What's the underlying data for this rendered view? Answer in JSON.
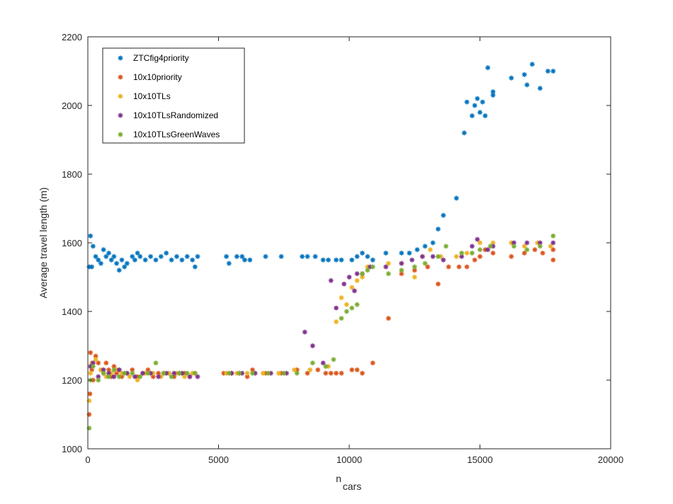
{
  "chart_data": {
    "type": "scatter",
    "xlabel_main": "n",
    "xlabel_sub": "cars",
    "ylabel": "Average travel length (m)",
    "xlim": [
      0,
      20000
    ],
    "ylim": [
      1000,
      2200
    ],
    "xticks": [
      0,
      5000,
      10000,
      15000,
      20000
    ],
    "xtick_labels": [
      "0",
      "5000",
      "10000",
      "15000",
      "20000"
    ],
    "yticks": [
      1000,
      1200,
      1400,
      1600,
      1800,
      2000,
      2200
    ],
    "ytick_labels": [
      "1000",
      "1200",
      "1400",
      "1600",
      "1800",
      "2000",
      "2200"
    ],
    "grid": false,
    "legend_position": "top-left",
    "marker": "asterisk",
    "series": [
      {
        "name": "ZTCfig4priority",
        "color": "#0072BD",
        "points": [
          [
            50,
            1530
          ],
          [
            100,
            1620
          ],
          [
            150,
            1530
          ],
          [
            200,
            1590
          ],
          [
            300,
            1560
          ],
          [
            400,
            1550
          ],
          [
            500,
            1540
          ],
          [
            600,
            1580
          ],
          [
            700,
            1560
          ],
          [
            800,
            1570
          ],
          [
            900,
            1550
          ],
          [
            1000,
            1560
          ],
          [
            1100,
            1540
          ],
          [
            1200,
            1520
          ],
          [
            1300,
            1550
          ],
          [
            1400,
            1530
          ],
          [
            1500,
            1540
          ],
          [
            1700,
            1560
          ],
          [
            1800,
            1550
          ],
          [
            1900,
            1570
          ],
          [
            2000,
            1560
          ],
          [
            2200,
            1550
          ],
          [
            2400,
            1560
          ],
          [
            2600,
            1550
          ],
          [
            2800,
            1560
          ],
          [
            3000,
            1570
          ],
          [
            3200,
            1550
          ],
          [
            3400,
            1560
          ],
          [
            3600,
            1550
          ],
          [
            3800,
            1560
          ],
          [
            4000,
            1550
          ],
          [
            4100,
            1530
          ],
          [
            4200,
            1560
          ],
          [
            5300,
            1560
          ],
          [
            5400,
            1540
          ],
          [
            5700,
            1560
          ],
          [
            5900,
            1560
          ],
          [
            6000,
            1550
          ],
          [
            6200,
            1550
          ],
          [
            6800,
            1560
          ],
          [
            7400,
            1560
          ],
          [
            8200,
            1560
          ],
          [
            8400,
            1560
          ],
          [
            8700,
            1560
          ],
          [
            9000,
            1550
          ],
          [
            9200,
            1550
          ],
          [
            9500,
            1550
          ],
          [
            9700,
            1550
          ],
          [
            10100,
            1550
          ],
          [
            10300,
            1560
          ],
          [
            10500,
            1570
          ],
          [
            10700,
            1560
          ],
          [
            10900,
            1550
          ],
          [
            11400,
            1570
          ],
          [
            12000,
            1570
          ],
          [
            12300,
            1570
          ],
          [
            12600,
            1580
          ],
          [
            12900,
            1590
          ],
          [
            13200,
            1600
          ],
          [
            13400,
            1640
          ],
          [
            13600,
            1680
          ],
          [
            14100,
            1730
          ],
          [
            14400,
            1920
          ],
          [
            14500,
            2010
          ],
          [
            14700,
            1970
          ],
          [
            14800,
            2000
          ],
          [
            14900,
            2020
          ],
          [
            15000,
            1980
          ],
          [
            15100,
            2010
          ],
          [
            15200,
            1970
          ],
          [
            15300,
            2110
          ],
          [
            15500,
            2030
          ],
          [
            15500,
            2040
          ],
          [
            16200,
            2080
          ],
          [
            16700,
            2090
          ],
          [
            16800,
            2060
          ],
          [
            17000,
            2120
          ],
          [
            17300,
            2050
          ],
          [
            17600,
            2100
          ],
          [
            17800,
            2100
          ]
        ]
      },
      {
        "name": "10x10priority",
        "color": "#D95319",
        "points": [
          [
            50,
            1100
          ],
          [
            80,
            1160
          ],
          [
            100,
            1280
          ],
          [
            150,
            1230
          ],
          [
            200,
            1200
          ],
          [
            300,
            1270
          ],
          [
            400,
            1250
          ],
          [
            500,
            1230
          ],
          [
            600,
            1220
          ],
          [
            700,
            1250
          ],
          [
            800,
            1230
          ],
          [
            900,
            1210
          ],
          [
            1000,
            1240
          ],
          [
            1100,
            1220
          ],
          [
            1200,
            1230
          ],
          [
            1300,
            1210
          ],
          [
            1500,
            1220
          ],
          [
            1700,
            1230
          ],
          [
            1900,
            1210
          ],
          [
            2100,
            1220
          ],
          [
            2300,
            1230
          ],
          [
            2500,
            1210
          ],
          [
            2700,
            1220
          ],
          [
            2900,
            1220
          ],
          [
            3100,
            1220
          ],
          [
            3300,
            1210
          ],
          [
            3500,
            1220
          ],
          [
            3700,
            1220
          ],
          [
            3900,
            1210
          ],
          [
            4100,
            1220
          ],
          [
            5200,
            1220
          ],
          [
            5500,
            1220
          ],
          [
            5800,
            1220
          ],
          [
            6100,
            1210
          ],
          [
            6300,
            1230
          ],
          [
            6800,
            1220
          ],
          [
            7400,
            1220
          ],
          [
            8000,
            1230
          ],
          [
            8400,
            1220
          ],
          [
            8800,
            1230
          ],
          [
            9100,
            1220
          ],
          [
            9300,
            1220
          ],
          [
            9500,
            1220
          ],
          [
            9700,
            1220
          ],
          [
            10100,
            1230
          ],
          [
            10300,
            1230
          ],
          [
            10500,
            1220
          ],
          [
            10900,
            1250
          ],
          [
            11500,
            1380
          ],
          [
            12000,
            1510
          ],
          [
            12500,
            1520
          ],
          [
            13000,
            1530
          ],
          [
            13400,
            1480
          ],
          [
            13800,
            1530
          ],
          [
            14200,
            1530
          ],
          [
            14500,
            1530
          ],
          [
            14800,
            1550
          ],
          [
            15000,
            1560
          ],
          [
            15200,
            1580
          ],
          [
            15500,
            1570
          ],
          [
            16200,
            1560
          ],
          [
            16700,
            1570
          ],
          [
            17100,
            1580
          ],
          [
            17400,
            1570
          ],
          [
            17800,
            1550
          ],
          [
            17800,
            1580
          ]
        ]
      },
      {
        "name": "10x10TLs",
        "color": "#EDB120",
        "points": [
          [
            50,
            1140
          ],
          [
            100,
            1220
          ],
          [
            150,
            1250
          ],
          [
            300,
            1260
          ],
          [
            500,
            1230
          ],
          [
            700,
            1210
          ],
          [
            900,
            1220
          ],
          [
            1100,
            1230
          ],
          [
            1300,
            1220
          ],
          [
            1600,
            1210
          ],
          [
            1900,
            1200
          ],
          [
            2200,
            1220
          ],
          [
            2500,
            1220
          ],
          [
            2800,
            1210
          ],
          [
            3100,
            1220
          ],
          [
            3400,
            1220
          ],
          [
            3700,
            1210
          ],
          [
            4000,
            1220
          ],
          [
            5300,
            1220
          ],
          [
            5700,
            1220
          ],
          [
            6100,
            1220
          ],
          [
            6700,
            1220
          ],
          [
            7300,
            1220
          ],
          [
            7900,
            1230
          ],
          [
            8500,
            1230
          ],
          [
            9200,
            1240
          ],
          [
            9500,
            1370
          ],
          [
            9700,
            1440
          ],
          [
            9900,
            1420
          ],
          [
            10100,
            1470
          ],
          [
            10300,
            1490
          ],
          [
            10500,
            1500
          ],
          [
            10700,
            1530
          ],
          [
            11500,
            1540
          ],
          [
            12000,
            1540
          ],
          [
            12500,
            1500
          ],
          [
            12800,
            1560
          ],
          [
            13100,
            1580
          ],
          [
            13500,
            1560
          ],
          [
            14100,
            1560
          ],
          [
            14500,
            1570
          ],
          [
            15000,
            1600
          ],
          [
            15500,
            1600
          ],
          [
            16200,
            1600
          ],
          [
            16700,
            1590
          ],
          [
            17200,
            1600
          ],
          [
            17700,
            1590
          ]
        ]
      },
      {
        "name": "10x10TLsRandomized",
        "color": "#7E2F8E",
        "points": [
          [
            100,
            1240
          ],
          [
            200,
            1250
          ],
          [
            400,
            1210
          ],
          [
            600,
            1230
          ],
          [
            800,
            1220
          ],
          [
            1000,
            1210
          ],
          [
            1200,
            1230
          ],
          [
            1500,
            1220
          ],
          [
            1800,
            1210
          ],
          [
            2100,
            1220
          ],
          [
            2400,
            1220
          ],
          [
            2700,
            1210
          ],
          [
            3000,
            1220
          ],
          [
            3300,
            1220
          ],
          [
            3600,
            1220
          ],
          [
            3900,
            1210
          ],
          [
            4200,
            1210
          ],
          [
            5500,
            1220
          ],
          [
            5900,
            1220
          ],
          [
            6400,
            1220
          ],
          [
            7000,
            1220
          ],
          [
            7600,
            1220
          ],
          [
            8300,
            1340
          ],
          [
            8600,
            1300
          ],
          [
            9000,
            1250
          ],
          [
            9300,
            1490
          ],
          [
            9500,
            1410
          ],
          [
            9800,
            1480
          ],
          [
            10000,
            1500
          ],
          [
            10200,
            1460
          ],
          [
            10300,
            1510
          ],
          [
            10500,
            1510
          ],
          [
            10800,
            1530
          ],
          [
            11400,
            1530
          ],
          [
            12000,
            1540
          ],
          [
            12400,
            1550
          ],
          [
            12800,
            1560
          ],
          [
            13200,
            1560
          ],
          [
            13600,
            1550
          ],
          [
            14300,
            1560
          ],
          [
            14700,
            1590
          ],
          [
            14900,
            1610
          ],
          [
            15300,
            1580
          ],
          [
            15500,
            1590
          ],
          [
            16300,
            1600
          ],
          [
            16800,
            1600
          ],
          [
            17300,
            1600
          ],
          [
            17800,
            1600
          ]
        ]
      },
      {
        "name": "10x10TLsGreenWaves",
        "color": "#77AC30",
        "points": [
          [
            50,
            1060
          ],
          [
            100,
            1200
          ],
          [
            200,
            1240
          ],
          [
            400,
            1200
          ],
          [
            600,
            1220
          ],
          [
            800,
            1210
          ],
          [
            1000,
            1230
          ],
          [
            1200,
            1210
          ],
          [
            1400,
            1220
          ],
          [
            1700,
            1220
          ],
          [
            2000,
            1210
          ],
          [
            2300,
            1220
          ],
          [
            2600,
            1250
          ],
          [
            2900,
            1220
          ],
          [
            3200,
            1210
          ],
          [
            3500,
            1220
          ],
          [
            3800,
            1220
          ],
          [
            4100,
            1220
          ],
          [
            5400,
            1220
          ],
          [
            5800,
            1220
          ],
          [
            6300,
            1220
          ],
          [
            6900,
            1220
          ],
          [
            7500,
            1220
          ],
          [
            8000,
            1220
          ],
          [
            8600,
            1250
          ],
          [
            9100,
            1240
          ],
          [
            9400,
            1260
          ],
          [
            9700,
            1380
          ],
          [
            9900,
            1400
          ],
          [
            10100,
            1410
          ],
          [
            10300,
            1420
          ],
          [
            10500,
            1510
          ],
          [
            10700,
            1520
          ],
          [
            10900,
            1530
          ],
          [
            11500,
            1510
          ],
          [
            12000,
            1520
          ],
          [
            12500,
            1530
          ],
          [
            12900,
            1540
          ],
          [
            13400,
            1560
          ],
          [
            13700,
            1590
          ],
          [
            14300,
            1570
          ],
          [
            14700,
            1570
          ],
          [
            15000,
            1580
          ],
          [
            15400,
            1590
          ],
          [
            16300,
            1590
          ],
          [
            16800,
            1580
          ],
          [
            17300,
            1590
          ],
          [
            17800,
            1620
          ]
        ]
      }
    ]
  }
}
